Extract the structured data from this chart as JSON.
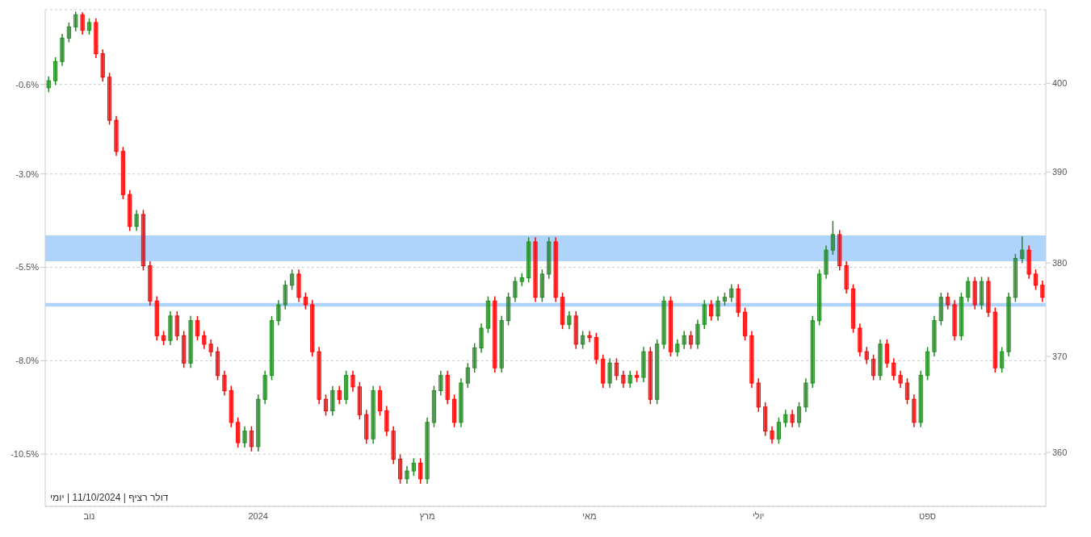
{
  "chart_data": {
    "type": "candlestick",
    "categories": [
      null,
      null,
      null,
      null,
      null,
      null,
      "נוב",
      null,
      null,
      null,
      null,
      null,
      null,
      null,
      null,
      null,
      null,
      null,
      null,
      null,
      null,
      null,
      null,
      null,
      null,
      null,
      null,
      null,
      null,
      null,
      null,
      "2024",
      null,
      null,
      null,
      null,
      null,
      null,
      null,
      null,
      null,
      null,
      null,
      null,
      null,
      null,
      null,
      null,
      null,
      null,
      null,
      null,
      null,
      null,
      null,
      null,
      "מרץ",
      null,
      null,
      null,
      null,
      null,
      null,
      null,
      null,
      null,
      null,
      null,
      null,
      null,
      null,
      null,
      null,
      null,
      null,
      null,
      null,
      null,
      null,
      null,
      "מאי",
      null,
      null,
      null,
      null,
      null,
      null,
      null,
      null,
      null,
      null,
      null,
      null,
      null,
      null,
      null,
      null,
      null,
      null,
      null,
      null,
      null,
      null,
      null,
      null,
      "יולי",
      null,
      null,
      null,
      null,
      null,
      null,
      null,
      null,
      null,
      null,
      null,
      null,
      null,
      null,
      null,
      null,
      null,
      null,
      null,
      null,
      null,
      null,
      null,
      null,
      "ספט",
      null,
      null,
      null,
      null,
      null,
      null,
      null,
      null,
      null,
      null,
      null,
      null,
      null,
      null,
      null,
      null,
      null
    ],
    "series": [
      {
        "axis": "y2",
        "ohlc": [
          [
            399.5,
            400.8,
            399.0,
            400.3
          ],
          [
            400.3,
            403.0,
            399.8,
            402.5
          ],
          [
            402.5,
            405.7,
            402.0,
            405.2
          ],
          [
            405.2,
            407.0,
            404.7,
            406.5
          ],
          [
            406.5,
            408.3,
            406.0,
            407.9
          ],
          [
            407.9,
            408.2,
            405.6,
            406.1
          ],
          [
            406.1,
            407.5,
            405.6,
            407.0
          ],
          [
            407.0,
            407.5,
            402.9,
            403.4
          ],
          [
            403.4,
            403.9,
            400.2,
            400.7
          ],
          [
            400.7,
            401.2,
            395.3,
            395.8
          ],
          [
            395.8,
            396.3,
            391.8,
            392.3
          ],
          [
            392.3,
            392.8,
            387.0,
            387.5
          ],
          [
            387.5,
            388.0,
            383.5,
            384.0
          ],
          [
            384.0,
            385.8,
            383.5,
            385.3
          ],
          [
            385.3,
            385.8,
            379.2,
            379.7
          ],
          [
            379.7,
            380.2,
            375.4,
            375.9
          ],
          [
            375.9,
            376.4,
            371.7,
            372.2
          ],
          [
            372.2,
            372.7,
            371.2,
            371.7
          ],
          [
            371.7,
            374.8,
            371.2,
            374.3
          ],
          [
            374.3,
            374.8,
            371.7,
            372.2
          ],
          [
            372.2,
            372.7,
            368.8,
            369.3
          ],
          [
            369.3,
            374.3,
            368.8,
            373.8
          ],
          [
            373.8,
            374.3,
            371.7,
            372.2
          ],
          [
            372.2,
            372.7,
            370.8,
            371.3
          ],
          [
            371.3,
            371.8,
            370.0,
            370.5
          ],
          [
            370.5,
            371.0,
            367.5,
            368.0
          ],
          [
            368.0,
            368.5,
            365.9,
            366.4
          ],
          [
            366.4,
            366.9,
            362.6,
            363.1
          ],
          [
            363.1,
            363.6,
            360.5,
            361.0
          ],
          [
            361.0,
            362.7,
            360.5,
            362.2
          ],
          [
            362.2,
            362.7,
            360.1,
            360.6
          ],
          [
            360.6,
            366.0,
            360.1,
            365.5
          ],
          [
            365.5,
            368.5,
            365.0,
            368.0
          ],
          [
            368.0,
            374.3,
            367.5,
            373.8
          ],
          [
            373.8,
            376.0,
            373.3,
            375.5
          ],
          [
            375.5,
            378.1,
            375.0,
            377.6
          ],
          [
            377.6,
            379.3,
            377.1,
            378.8
          ],
          [
            378.8,
            379.3,
            375.8,
            376.3
          ],
          [
            376.3,
            376.8,
            375.0,
            375.5
          ],
          [
            375.5,
            376.0,
            370.0,
            370.5
          ],
          [
            370.5,
            371.0,
            365.0,
            365.5
          ],
          [
            365.5,
            366.0,
            363.8,
            364.3
          ],
          [
            364.3,
            366.9,
            363.8,
            366.4
          ],
          [
            366.4,
            366.9,
            365.0,
            365.5
          ],
          [
            365.5,
            368.5,
            365.0,
            368.0
          ],
          [
            368.0,
            368.5,
            366.3,
            366.8
          ],
          [
            366.8,
            367.3,
            363.4,
            363.9
          ],
          [
            363.9,
            364.4,
            360.9,
            361.4
          ],
          [
            361.4,
            366.9,
            360.9,
            366.4
          ],
          [
            366.4,
            366.9,
            363.8,
            364.3
          ],
          [
            364.3,
            364.8,
            361.7,
            362.2
          ],
          [
            362.2,
            362.7,
            358.8,
            359.3
          ],
          [
            359.3,
            359.8,
            356.8,
            357.3
          ],
          [
            357.3,
            358.6,
            356.8,
            358.1
          ],
          [
            358.1,
            359.4,
            357.6,
            358.9
          ],
          [
            358.9,
            359.4,
            356.8,
            357.3
          ],
          [
            357.3,
            363.6,
            356.8,
            363.1
          ],
          [
            363.1,
            366.9,
            362.6,
            366.4
          ],
          [
            366.4,
            368.5,
            365.9,
            368.0
          ],
          [
            368.0,
            368.5,
            365.0,
            365.5
          ],
          [
            365.5,
            366.0,
            362.6,
            363.1
          ],
          [
            363.1,
            367.7,
            362.6,
            367.2
          ],
          [
            367.2,
            369.3,
            366.7,
            368.8
          ],
          [
            368.8,
            371.4,
            368.3,
            370.9
          ],
          [
            370.9,
            373.5,
            370.4,
            373.0
          ],
          [
            373.0,
            376.4,
            372.5,
            375.9
          ],
          [
            375.9,
            376.4,
            368.3,
            368.8
          ],
          [
            368.8,
            374.3,
            368.3,
            373.8
          ],
          [
            373.8,
            376.8,
            373.3,
            376.3
          ],
          [
            376.3,
            378.5,
            375.8,
            378.0
          ],
          [
            378.0,
            378.9,
            377.5,
            378.4
          ],
          [
            378.4,
            382.8,
            377.9,
            382.3
          ],
          [
            382.3,
            382.8,
            375.8,
            376.3
          ],
          [
            376.3,
            379.3,
            375.8,
            378.8
          ],
          [
            378.8,
            382.8,
            378.3,
            382.3
          ],
          [
            382.3,
            382.8,
            375.8,
            376.3
          ],
          [
            376.3,
            376.8,
            372.9,
            373.4
          ],
          [
            373.4,
            374.8,
            372.9,
            374.3
          ],
          [
            374.3,
            374.8,
            370.8,
            371.3
          ],
          [
            371.3,
            372.7,
            370.8,
            372.2
          ],
          [
            372.2,
            372.7,
            371.5,
            372.0
          ],
          [
            372.0,
            372.5,
            369.2,
            369.7
          ],
          [
            369.7,
            370.2,
            366.7,
            367.2
          ],
          [
            367.2,
            369.8,
            366.7,
            369.3
          ],
          [
            369.3,
            369.8,
            367.5,
            368.0
          ],
          [
            368.0,
            368.5,
            366.7,
            367.2
          ],
          [
            367.2,
            368.5,
            366.7,
            368.0
          ],
          [
            368.0,
            368.5,
            367.3,
            367.8
          ],
          [
            367.8,
            371.0,
            367.3,
            370.5
          ],
          [
            370.5,
            371.0,
            365.0,
            365.5
          ],
          [
            365.5,
            371.8,
            365.0,
            371.3
          ],
          [
            371.3,
            376.4,
            370.8,
            375.9
          ],
          [
            375.9,
            376.4,
            370.0,
            370.5
          ],
          [
            370.5,
            371.8,
            370.0,
            371.3
          ],
          [
            371.3,
            372.7,
            370.8,
            372.2
          ],
          [
            372.2,
            372.7,
            370.8,
            371.3
          ],
          [
            371.3,
            373.9,
            370.8,
            373.4
          ],
          [
            373.4,
            376.0,
            372.9,
            375.5
          ],
          [
            375.5,
            376.0,
            373.8,
            374.3
          ],
          [
            374.3,
            376.4,
            373.8,
            375.9
          ],
          [
            375.9,
            376.8,
            375.4,
            376.3
          ],
          [
            376.3,
            377.7,
            375.8,
            377.2
          ],
          [
            377.2,
            377.7,
            374.2,
            374.7
          ],
          [
            374.7,
            375.2,
            371.7,
            372.2
          ],
          [
            372.2,
            372.7,
            366.7,
            367.2
          ],
          [
            367.2,
            367.7,
            364.2,
            364.7
          ],
          [
            364.7,
            365.2,
            361.7,
            362.2
          ],
          [
            362.2,
            362.7,
            360.9,
            361.4
          ],
          [
            361.4,
            363.6,
            360.9,
            363.1
          ],
          [
            363.1,
            364.4,
            362.6,
            363.9
          ],
          [
            363.9,
            364.4,
            362.6,
            363.1
          ],
          [
            363.1,
            365.2,
            362.6,
            364.7
          ],
          [
            364.7,
            367.7,
            364.2,
            367.2
          ],
          [
            367.2,
            374.3,
            366.7,
            373.8
          ],
          [
            373.8,
            379.3,
            373.3,
            378.8
          ],
          [
            378.8,
            381.9,
            378.3,
            381.4
          ],
          [
            381.4,
            384.6,
            380.9,
            383.1
          ],
          [
            383.1,
            383.6,
            379.2,
            379.7
          ],
          [
            379.7,
            380.2,
            376.7,
            377.2
          ],
          [
            377.2,
            377.7,
            372.5,
            373.0
          ],
          [
            373.0,
            373.5,
            370.0,
            370.5
          ],
          [
            370.5,
            371.0,
            369.2,
            369.7
          ],
          [
            369.7,
            370.2,
            367.5,
            368.0
          ],
          [
            368.0,
            371.8,
            367.5,
            371.3
          ],
          [
            371.3,
            371.8,
            368.8,
            369.3
          ],
          [
            369.3,
            369.8,
            367.5,
            368.0
          ],
          [
            368.0,
            368.5,
            366.7,
            367.2
          ],
          [
            367.2,
            367.7,
            365.0,
            365.5
          ],
          [
            365.5,
            366.0,
            362.6,
            363.1
          ],
          [
            363.1,
            368.5,
            362.6,
            368.0
          ],
          [
            368.0,
            371.0,
            367.5,
            370.5
          ],
          [
            370.5,
            374.3,
            370.0,
            373.8
          ],
          [
            373.8,
            376.8,
            373.3,
            376.3
          ],
          [
            376.3,
            376.8,
            375.0,
            375.5
          ],
          [
            375.5,
            376.0,
            371.7,
            372.2
          ],
          [
            372.2,
            376.8,
            371.7,
            376.3
          ],
          [
            376.3,
            378.5,
            375.8,
            378.0
          ],
          [
            378.0,
            378.5,
            375.0,
            375.5
          ],
          [
            375.5,
            378.5,
            375.0,
            378.0
          ],
          [
            378.0,
            378.5,
            374.2,
            374.7
          ],
          [
            374.7,
            375.2,
            368.3,
            368.8
          ],
          [
            368.8,
            371.0,
            368.3,
            370.5
          ],
          [
            370.5,
            376.8,
            370.0,
            376.3
          ],
          [
            376.3,
            381.0,
            375.8,
            380.5
          ],
          [
            380.5,
            382.9,
            380.0,
            381.4
          ],
          [
            381.4,
            381.9,
            378.3,
            378.8
          ],
          [
            378.8,
            379.3,
            377.1,
            377.6
          ],
          [
            377.6,
            378.1,
            375.8,
            376.3
          ]
        ],
        "colors": [
          "#228b22",
          "#228b22",
          "#228b22",
          "#228b22",
          "#228b22",
          "#ff0000",
          "#228b22",
          "#ff0000",
          "#ff0000",
          "#ff0000",
          "#ff0000",
          "#ff0000",
          "#ff0000",
          "#228b22",
          "#ff0000",
          "#ff0000",
          "#ff0000",
          "#ff0000",
          "#228b22",
          "#ff0000",
          "#ff0000",
          "#228b22",
          "#ff0000",
          "#ff0000",
          "#ff0000",
          "#ff0000",
          "#ff0000",
          "#ff0000",
          "#ff0000",
          "#228b22",
          "#ff0000",
          "#228b22",
          "#228b22",
          "#228b22",
          "#228b22",
          "#228b22",
          "#228b22",
          "#ff0000",
          "#ff0000",
          "#ff0000",
          "#ff0000",
          "#ff0000",
          "#228b22",
          "#ff0000",
          "#228b22",
          "#ff0000",
          "#ff0000",
          "#ff0000",
          "#228b22",
          "#ff0000",
          "#ff0000",
          "#ff0000",
          "#ff0000",
          "#228b22",
          "#228b22",
          "#ff0000",
          "#228b22",
          "#228b22",
          "#228b22",
          "#ff0000",
          "#ff0000",
          "#228b22",
          "#228b22",
          "#228b22",
          "#228b22",
          "#228b22",
          "#ff0000",
          "#228b22",
          "#228b22",
          "#228b22",
          "#228b22",
          "#228b22",
          "#ff0000",
          "#228b22",
          "#228b22",
          "#ff0000",
          "#ff0000",
          "#228b22",
          "#ff0000",
          "#228b22",
          "#ff0000",
          "#ff0000",
          "#ff0000",
          "#228b22",
          "#ff0000",
          "#ff0000",
          "#228b22",
          "#ff0000",
          "#228b22",
          "#ff0000",
          "#228b22",
          "#228b22",
          "#ff0000",
          "#228b22",
          "#228b22",
          "#ff0000",
          "#228b22",
          "#228b22",
          "#ff0000",
          "#228b22",
          "#228b22",
          "#228b22",
          "#ff0000",
          "#ff0000",
          "#ff0000",
          "#ff0000",
          "#ff0000",
          "#ff0000",
          "#228b22",
          "#228b22",
          "#ff0000",
          "#228b22",
          "#228b22",
          "#228b22",
          "#228b22",
          "#228b22",
          "#228b22",
          "#ff0000",
          "#ff0000",
          "#ff0000",
          "#ff0000",
          "#ff0000",
          "#ff0000",
          "#228b22",
          "#ff0000",
          "#ff0000",
          "#ff0000",
          "#ff0000",
          "#ff0000",
          "#228b22",
          "#228b22",
          "#228b22",
          "#228b22",
          "#ff0000",
          "#ff0000",
          "#228b22",
          "#228b22",
          "#ff0000",
          "#228b22",
          "#ff0000",
          "#ff0000",
          "#228b22",
          "#228b22",
          "#228b22",
          "#228b22",
          "#ff0000",
          "#ff0000",
          "#ff0000"
        ]
      }
    ],
    "ylim": [
      -11.9,
      1.4
    ],
    "yticks": [
      {
        "value": -10.5,
        "label": "-10.5%"
      },
      {
        "value": -8.0,
        "label": "-8.0%"
      },
      {
        "value": -5.5,
        "label": "-5.5%"
      },
      {
        "value": -3.0,
        "label": "-3.0%"
      },
      {
        "value": -0.6,
        "label": "-0.6%"
      }
    ],
    "y2lim": [
      354.5,
      408.5
    ],
    "y2ticks": [
      360,
      370,
      380,
      390,
      400
    ],
    "log": "y2",
    "grid": "y",
    "bands": [
      {
        "axis": "y2",
        "from": 380.2,
        "to": 383.0,
        "color": "#94c6fa"
      },
      {
        "axis": "y2",
        "from": 375.3,
        "to": 375.7,
        "color": "#94c6fa"
      }
    ],
    "annotations": [
      "דולר רציף | 11/10/2024 | יומי"
    ]
  }
}
